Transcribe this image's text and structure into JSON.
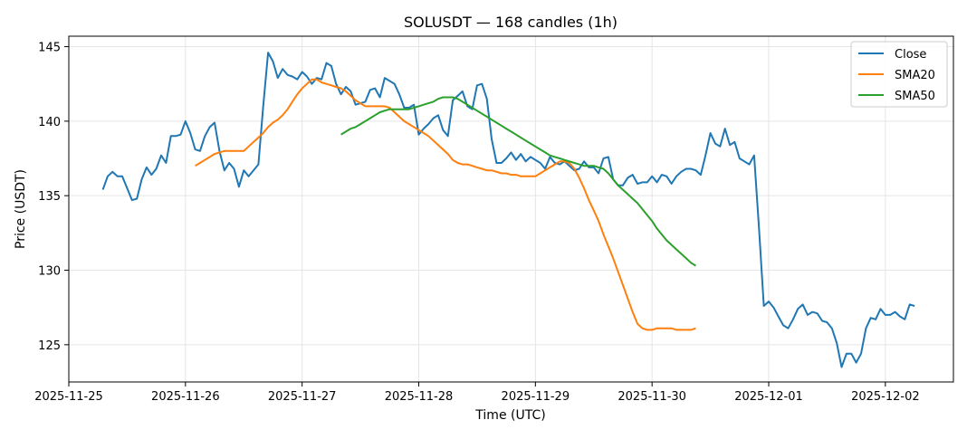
{
  "chart_data": {
    "type": "line",
    "title": "SOLUSDT — 168 candles (1h)",
    "xlabel": "Time (UTC)",
    "ylabel": "Price (USDT)",
    "x_ticks": [
      "2025-11-25",
      "2025-11-26",
      "2025-11-27",
      "2025-11-28",
      "2025-11-29",
      "2025-11-30",
      "2025-12-01",
      "2025-12-02"
    ],
    "x_range": [
      "2025-11-25T00:00",
      "2025-12-02T14:00"
    ],
    "y_ticks": [
      125,
      130,
      135,
      140,
      145
    ],
    "ylim": [
      122.5,
      145.7
    ],
    "grid": true,
    "legend_position": "top-right",
    "x_start": "2025-11-25T07:00",
    "x_step_hours": 1,
    "series": [
      {
        "name": "Close",
        "color": "#1f77b4",
        "values": [
          135.4,
          136.3,
          136.6,
          136.3,
          136.3,
          135.5,
          134.7,
          134.8,
          136.1,
          136.9,
          136.4,
          136.8,
          137.7,
          137.2,
          139.0,
          139.0,
          139.1,
          140.0,
          139.2,
          138.1,
          138.0,
          139.0,
          139.6,
          139.9,
          138.0,
          136.7,
          137.2,
          136.8,
          135.6,
          136.7,
          136.3,
          136.7,
          137.1,
          141.0,
          144.6,
          144.0,
          142.9,
          143.5,
          143.1,
          143.0,
          142.8,
          143.3,
          143.0,
          142.5,
          142.9,
          142.8,
          143.9,
          143.7,
          142.5,
          141.8,
          142.3,
          142.0,
          141.1,
          141.2,
          141.3,
          142.1,
          142.2,
          141.6,
          142.9,
          142.7,
          142.5,
          141.8,
          140.9,
          140.9,
          141.1,
          139.1,
          139.5,
          139.8,
          140.2,
          140.4,
          139.4,
          139.0,
          141.4,
          141.7,
          142.0,
          141.0,
          140.8,
          142.4,
          142.5,
          141.5,
          138.8,
          137.2,
          137.2,
          137.5,
          137.9,
          137.4,
          137.8,
          137.3,
          137.6,
          137.4,
          137.2,
          136.8,
          137.6,
          137.2,
          137.1,
          137.3,
          137.0,
          136.7,
          136.8,
          137.3,
          136.9,
          136.9,
          136.5,
          137.5,
          137.6,
          136.1,
          135.7,
          135.7,
          136.2,
          136.4,
          135.8,
          135.9,
          135.9,
          136.3,
          135.9,
          136.4,
          136.3,
          135.8,
          136.3,
          136.6,
          136.8,
          136.8,
          136.7,
          136.4,
          137.7,
          139.2,
          138.5,
          138.3,
          139.5,
          138.4,
          138.6,
          137.5,
          137.3,
          137.1,
          137.7,
          132.8,
          127.6,
          127.9,
          127.5,
          126.9,
          126.3,
          126.1,
          126.7,
          127.4,
          127.7,
          127.0,
          127.2,
          127.1,
          126.6,
          126.5,
          126.1,
          125.1,
          123.5,
          124.4,
          124.4,
          123.8,
          124.4,
          126.1,
          126.8,
          126.7,
          127.4,
          127.0,
          127.0,
          127.2,
          126.9,
          126.7,
          127.7,
          127.6
        ]
      },
      {
        "name": "SMA20",
        "color": "#ff7f0e",
        "start_index": 19,
        "values": [
          137.0,
          137.2,
          137.4,
          137.6,
          137.8,
          137.9,
          138.0,
          138.0,
          138.0,
          138.0,
          138.0,
          138.3,
          138.6,
          138.9,
          139.2,
          139.6,
          139.9,
          140.1,
          140.4,
          140.8,
          141.3,
          141.8,
          142.2,
          142.5,
          142.8,
          142.8,
          142.6,
          142.5,
          142.4,
          142.3,
          142.2,
          142.0,
          141.7,
          141.4,
          141.2,
          141.0,
          141.0,
          141.0,
          141.0,
          141.0,
          140.9,
          140.6,
          140.3,
          140.0,
          139.8,
          139.6,
          139.4,
          139.2,
          139.0,
          138.7,
          138.4,
          138.1,
          137.8,
          137.4,
          137.2,
          137.1,
          137.1,
          137.0,
          136.9,
          136.8,
          136.7,
          136.7,
          136.6,
          136.5,
          136.5,
          136.4,
          136.4,
          136.3,
          136.3,
          136.3,
          136.3,
          136.5,
          136.7,
          136.9,
          137.1,
          137.3,
          137.3,
          137.2,
          136.8,
          136.2,
          135.5,
          134.7,
          134.0,
          133.3,
          132.4,
          131.6,
          130.8,
          129.9,
          129.0,
          128.1,
          127.2,
          126.4,
          126.1,
          126.0,
          126.0,
          126.1,
          126.1,
          126.1,
          126.1,
          126.0,
          126.0,
          126.0,
          126.0,
          126.1
        ]
      },
      {
        "name": "SMA50",
        "color": "#2ca02c",
        "start_index": 49,
        "values": [
          139.1,
          139.3,
          139.5,
          139.6,
          139.8,
          140.0,
          140.2,
          140.4,
          140.6,
          140.7,
          140.8,
          140.8,
          140.8,
          140.8,
          140.8,
          140.9,
          141.0,
          141.1,
          141.2,
          141.3,
          141.5,
          141.6,
          141.6,
          141.6,
          141.5,
          141.3,
          141.1,
          140.9,
          140.7,
          140.5,
          140.3,
          140.1,
          139.9,
          139.7,
          139.5,
          139.3,
          139.1,
          138.9,
          138.7,
          138.5,
          138.3,
          138.1,
          137.9,
          137.7,
          137.6,
          137.5,
          137.4,
          137.3,
          137.2,
          137.1,
          137.0,
          137.0,
          137.0,
          136.9,
          136.8,
          136.5,
          136.1,
          135.7,
          135.4,
          135.1,
          134.8,
          134.5,
          134.1,
          133.7,
          133.3,
          132.8,
          132.4,
          132.0,
          131.7,
          131.4,
          131.1,
          130.8,
          130.5,
          130.3
        ]
      }
    ]
  }
}
